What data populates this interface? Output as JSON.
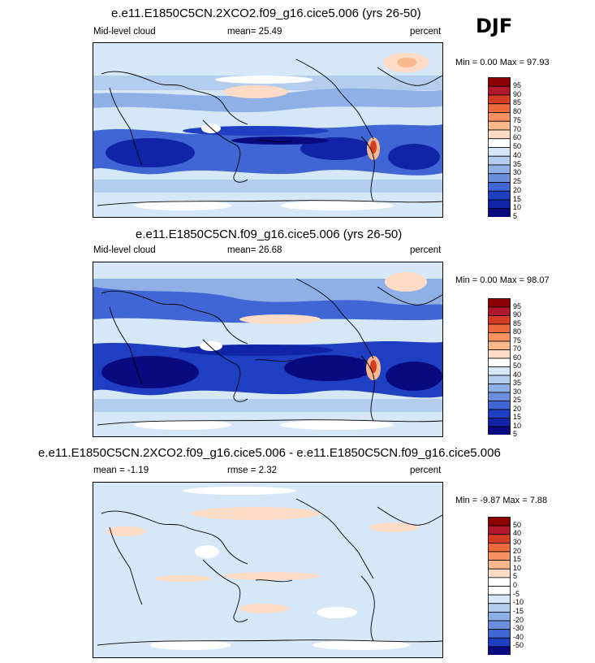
{
  "season": "DJF",
  "panels": [
    {
      "title": "e.e11.E1850C5CN.2XCO2.f09_g16.cice5.006 (yrs 26-50)",
      "left_label": "Mid-level cloud",
      "center_label": "mean=  25.49",
      "units": "percent",
      "minmax": "Min =   0.00 Max =  97.93",
      "colorbar_levels": [
        "95",
        "90",
        "85",
        "80",
        "75",
        "70",
        "60",
        "50",
        "40",
        "35",
        "30",
        "25",
        "20",
        "15",
        "10",
        "5"
      ],
      "colorbar_colors": [
        "#8b0000",
        "#b2182b",
        "#d63b24",
        "#ec6a3c",
        "#f5915e",
        "#f9b88b",
        "#fddbc4",
        "#ffffff",
        "#d6e7f7",
        "#b3cdef",
        "#8fb0e6",
        "#6b8fdd",
        "#3f66d4",
        "#1f3fc2",
        "#0f24a6",
        "#0a0a80"
      ]
    },
    {
      "title": "e.e11.E1850C5CN.f09_g16.cice5.006 (yrs 26-50)",
      "left_label": "Mid-level cloud",
      "center_label": "mean=  26.68",
      "units": "percent",
      "minmax": "Min =   0.00 Max =  98.07",
      "colorbar_levels": [
        "95",
        "90",
        "85",
        "80",
        "75",
        "70",
        "60",
        "50",
        "40",
        "35",
        "30",
        "25",
        "20",
        "15",
        "10",
        "5"
      ],
      "colorbar_colors": [
        "#8b0000",
        "#b2182b",
        "#d63b24",
        "#ec6a3c",
        "#f5915e",
        "#f9b88b",
        "#fddbc4",
        "#ffffff",
        "#d6e7f7",
        "#b3cdef",
        "#8fb0e6",
        "#6b8fdd",
        "#3f66d4",
        "#1f3fc2",
        "#0f24a6",
        "#0a0a80"
      ]
    },
    {
      "title": "e.e11.E1850C5CN.2XCO2.f09_g16.cice5.006 - e.e11.E1850C5CN.f09_g16.cice5.006",
      "left_label": "mean =  -1.19",
      "center_label": "rmse =   2.32",
      "units": "percent",
      "minmax": "Min =  -9.87 Max =   7.88",
      "colorbar_levels": [
        "50",
        "40",
        "30",
        "20",
        "15",
        "10",
        "5",
        "0",
        "-5",
        "-10",
        "-15",
        "-20",
        "-30",
        "-40",
        "-50"
      ],
      "colorbar_colors": [
        "#8b0000",
        "#b2182b",
        "#d63b24",
        "#ec6a3c",
        "#f5915e",
        "#f9b88b",
        "#fddbc4",
        "#ffffff",
        "#ffffff",
        "#d6e7f7",
        "#b3cdef",
        "#8fb0e6",
        "#6b8fdd",
        "#3f66d4",
        "#1f3fc2",
        "#0a0a80"
      ]
    }
  ],
  "chart_data": [
    {
      "type": "heatmap",
      "title": "e.e11.E1850C5CN.2XCO2.f09_g16.cice5.006 (yrs 26-50)",
      "field": "Mid-level cloud",
      "season": "DJF",
      "units": "percent",
      "mean": 25.49,
      "min": 0.0,
      "max": 97.93,
      "levels": [
        5,
        10,
        15,
        20,
        25,
        30,
        35,
        40,
        50,
        60,
        70,
        75,
        80,
        85,
        90,
        95
      ]
    },
    {
      "type": "heatmap",
      "title": "e.e11.E1850C5CN.f09_g16.cice5.006 (yrs 26-50)",
      "field": "Mid-level cloud",
      "season": "DJF",
      "units": "percent",
      "mean": 26.68,
      "min": 0.0,
      "max": 98.07,
      "levels": [
        5,
        10,
        15,
        20,
        25,
        30,
        35,
        40,
        50,
        60,
        70,
        75,
        80,
        85,
        90,
        95
      ]
    },
    {
      "type": "heatmap",
      "title": "e.e11.E1850C5CN.2XCO2.f09_g16.cice5.006 - e.e11.E1850C5CN.f09_g16.cice5.006",
      "season": "DJF",
      "units": "percent",
      "mean": -1.19,
      "rmse": 2.32,
      "min": -9.87,
      "max": 7.88,
      "levels": [
        -50,
        -40,
        -30,
        -20,
        -15,
        -10,
        -5,
        0,
        5,
        10,
        15,
        20,
        30,
        40,
        50
      ]
    }
  ]
}
